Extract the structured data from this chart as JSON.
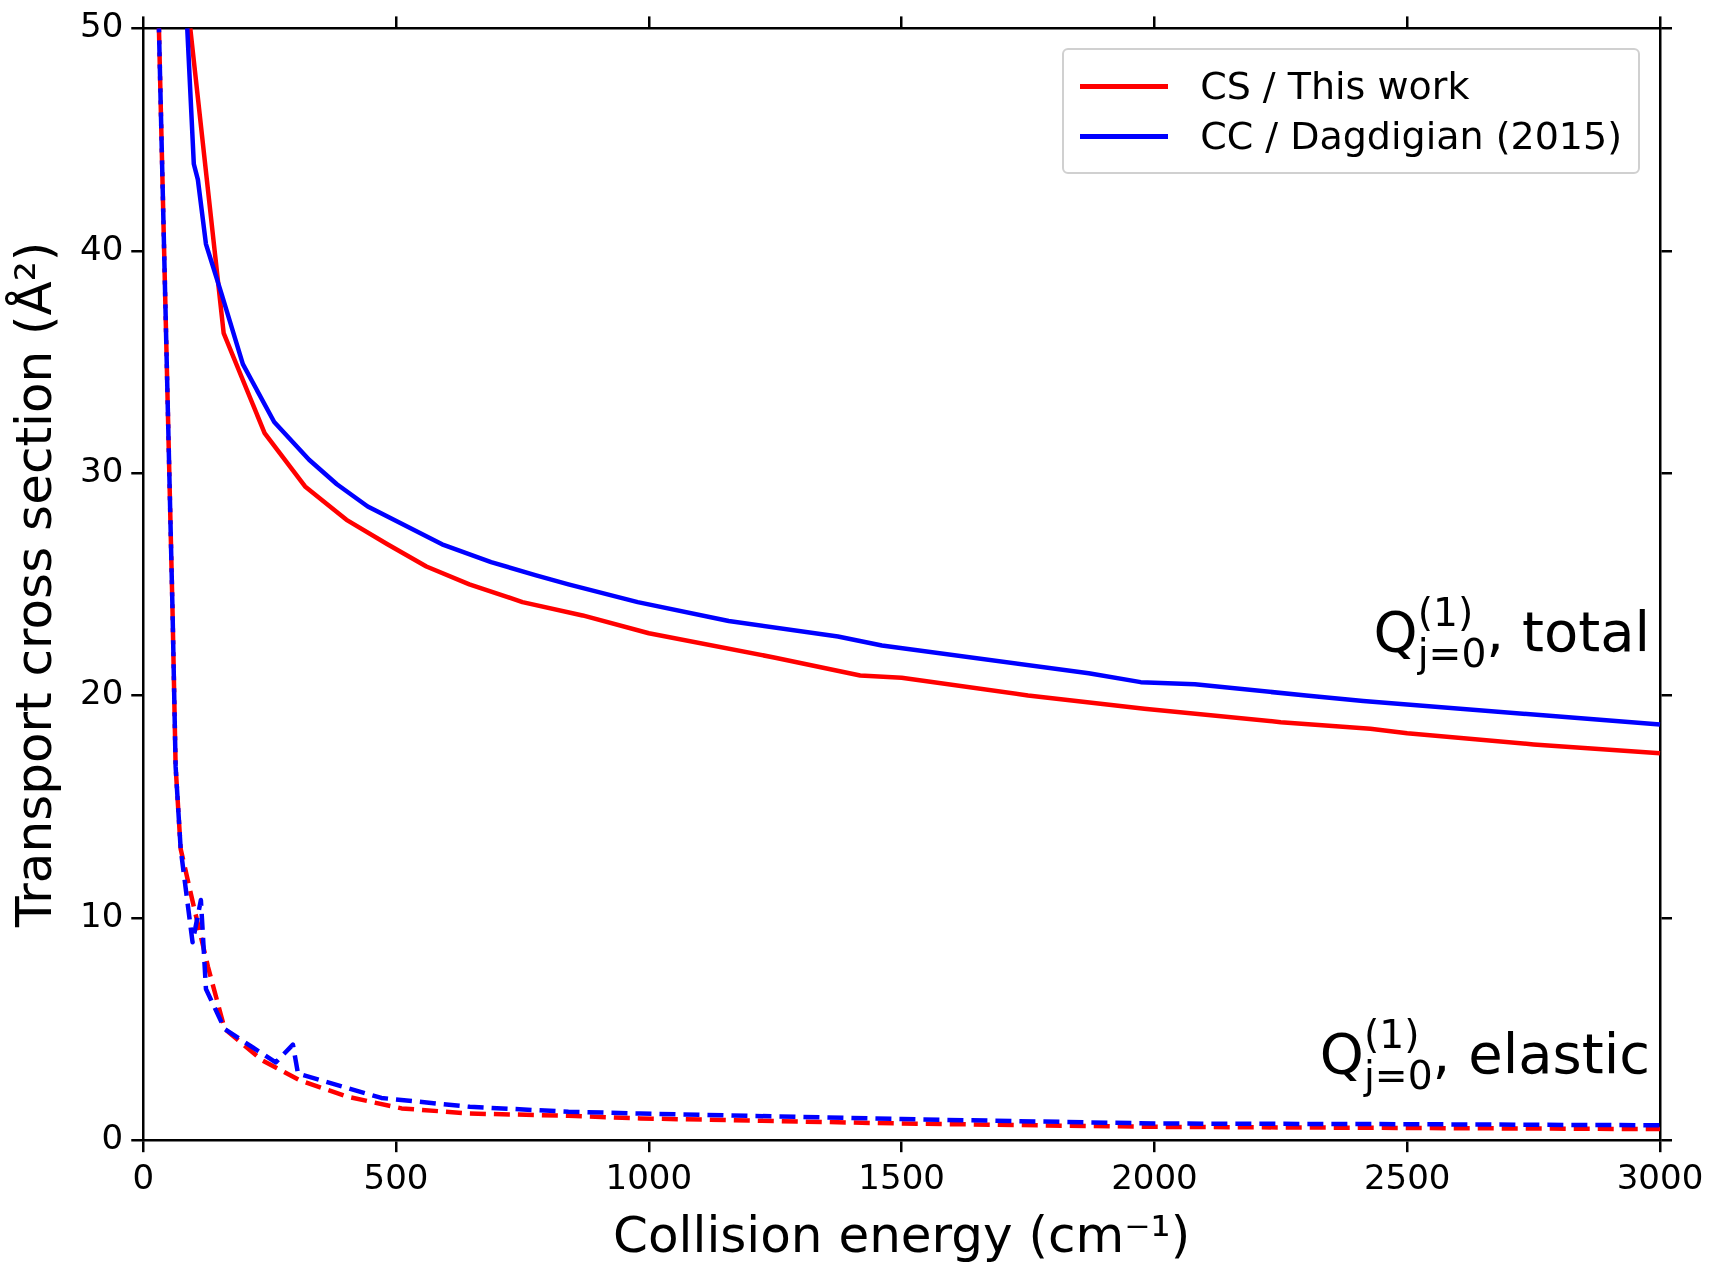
{
  "chart_data": {
    "type": "line",
    "xlabel": "Collision energy (cm⁻¹)",
    "ylabel": "Transport cross section (Å²)",
    "xlim": [
      0,
      3000
    ],
    "xticks": [
      0,
      500,
      1000,
      1500,
      2000,
      2500,
      3000
    ],
    "ylim": [
      0,
      50
    ],
    "yticks": [
      0,
      10,
      20,
      30,
      40,
      50
    ],
    "grid": false,
    "legend": "top right",
    "marker": "none",
    "series": [
      {
        "name": "CS / This work",
        "color": "#ff0000",
        "line_style": "solid",
        "x": [
          93,
          159,
          240,
          320,
          402,
          483,
          560,
          645,
          750,
          869,
          1000,
          1250,
          1418,
          1500,
          1750,
          1980,
          2250,
          2427,
          2500,
          2750,
          3000
        ],
        "values": [
          50,
          36.3,
          31.8,
          29.4,
          27.9,
          26.8,
          25.8,
          25.0,
          24.2,
          23.6,
          22.8,
          21.7,
          20.9,
          20.8,
          20.0,
          19.4,
          18.8,
          18.5,
          18.3,
          17.8,
          17.4
        ]
      },
      {
        "name": "CC / Dagdigian (2015)",
        "color": "#0000ff",
        "line_style": "solid",
        "x": [
          87,
          100,
          108,
          124,
          155,
          197,
          259,
          328,
          383,
          444,
          591,
          688,
          777,
          841,
          978,
          1158,
          1374,
          1461,
          1870,
          1973,
          2080,
          2300,
          2413,
          2775,
          3000
        ],
        "values": [
          50,
          43.9,
          43.2,
          40.3,
          38.05,
          34.9,
          32.3,
          30.6,
          29.5,
          28.5,
          26.8,
          26.0,
          25.4,
          25.0,
          24.2,
          23.35,
          22.65,
          22.25,
          21.0,
          20.6,
          20.5,
          20.0,
          19.75,
          19.1,
          18.7
        ]
      },
      {
        "color": "#ff0000",
        "line_style": "dashed",
        "x": [
          31,
          58,
          64,
          74,
          100,
          128,
          161,
          235,
          309,
          403,
          511,
          646,
          841,
          983,
          1500,
          2000,
          2500,
          3000
        ],
        "values": [
          50,
          23.7,
          16.8,
          13.1,
          10.5,
          7.8,
          5.0,
          3.6,
          2.7,
          1.96,
          1.43,
          1.2,
          1.1,
          0.98,
          0.75,
          0.6,
          0.55,
          0.5
        ]
      },
      {
        "color": "#0000ff",
        "line_style": "dashed",
        "x": [
          31,
          58,
          64,
          74,
          97.5,
          114,
          124,
          161,
          262,
          296,
          306,
          471,
          646,
          841,
          983,
          1500,
          2000,
          2500,
          3000
        ],
        "values": [
          50,
          23.7,
          16.8,
          13.1,
          8.9,
          10.8,
          6.8,
          5.0,
          3.5,
          4.3,
          3.0,
          1.9,
          1.5,
          1.28,
          1.2,
          0.95,
          0.75,
          0.72,
          0.67
        ]
      }
    ],
    "annotations": [
      "Q$^{(1)}$$_{j=0}$, total",
      "Q$^{(1)}$$_{j=0}$, elastic"
    ]
  }
}
